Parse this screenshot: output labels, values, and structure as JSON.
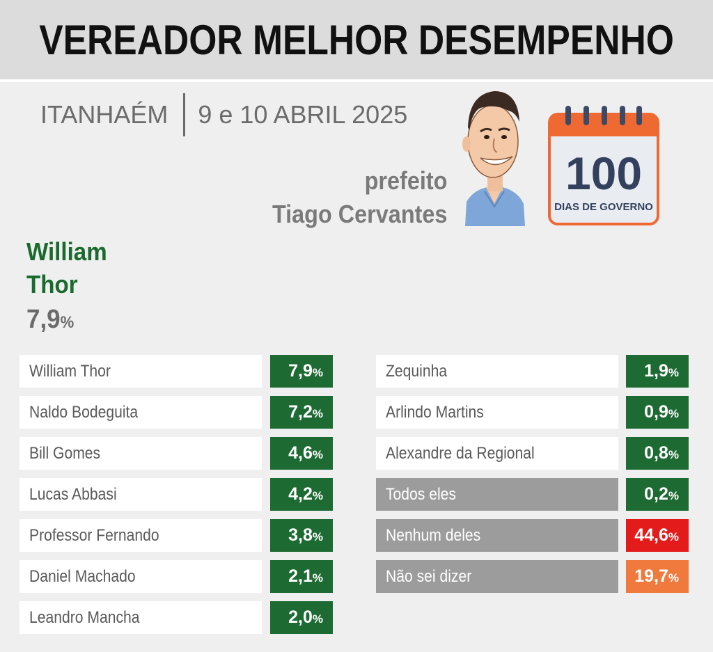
{
  "title": "VEREADOR MELHOR DESEMPENHO",
  "city": "ITANHAÉM",
  "date": "9 e 10 ABRIL 2025",
  "mayor": {
    "role": "prefeito",
    "name": "Tiago Cervantes"
  },
  "badge": {
    "number": "100",
    "text": "DIAS DE GOVERNO"
  },
  "winner": {
    "first_name": "William",
    "last_name": "Thor",
    "value": "7,9",
    "unit": "%"
  },
  "colors": {
    "green": "#1d6b33",
    "red": "#e31b1b",
    "orange": "#f07a3e",
    "grey": "#9c9c9c"
  },
  "left_list": [
    {
      "name": "William Thor",
      "value": "7,9",
      "unit": "%"
    },
    {
      "name": "Naldo Bodeguita",
      "value": "7,2",
      "unit": "%"
    },
    {
      "name": "Bill Gomes",
      "value": "4,6",
      "unit": "%"
    },
    {
      "name": "Lucas Abbasi",
      "value": "4,2",
      "unit": "%"
    },
    {
      "name": "Professor Fernando",
      "value": "3,8",
      "unit": "%"
    },
    {
      "name": "Daniel Machado",
      "value": "2,1",
      "unit": "%"
    },
    {
      "name": "Leandro Mancha",
      "value": "2,0",
      "unit": "%"
    }
  ],
  "right_list": [
    {
      "name": "Zequinha",
      "value": "1,9",
      "unit": "%"
    },
    {
      "name": "Arlindo Martins",
      "value": "0,9",
      "unit": "%"
    },
    {
      "name": "Alexandre da Regional",
      "value": "0,8",
      "unit": "%"
    },
    {
      "name": "Todos eles",
      "value": "0,2",
      "unit": "%"
    },
    {
      "name": "Nenhum deles",
      "value": "44,6",
      "unit": "%"
    },
    {
      "name": "Não sei dizer",
      "value": "19,7",
      "unit": "%"
    }
  ]
}
